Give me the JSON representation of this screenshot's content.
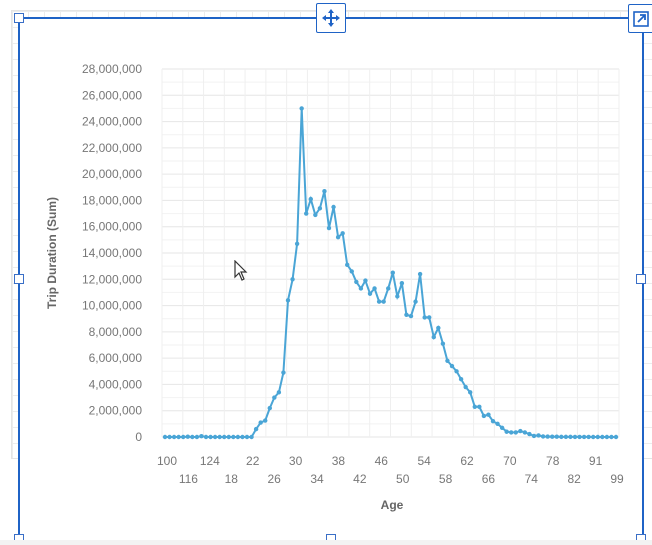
{
  "chart_data": {
    "type": "line",
    "xlabel": "Age",
    "ylabel": "Trip Duration (Sum)",
    "x_tick_labels_row1": [
      "100",
      "124",
      "22",
      "30",
      "38",
      "46",
      "54",
      "62",
      "70",
      "78",
      "91"
    ],
    "x_tick_labels_row2": [
      "116",
      "18",
      "26",
      "34",
      "42",
      "50",
      "58",
      "66",
      "74",
      "82",
      "99"
    ],
    "ylim": [
      0,
      28000000
    ],
    "y_ticks": [
      "0",
      "2,000,000",
      "4,000,000",
      "6,000,000",
      "8,000,000",
      "10,000,000",
      "12,000,000",
      "14,000,000",
      "16,000,000",
      "18,000,000",
      "20,000,000",
      "22,000,000",
      "24,000,000",
      "26,000,000",
      "28,000,000"
    ],
    "grid": true,
    "series_color": "#4aa5d6",
    "categories": [
      "100",
      "101",
      "102",
      "103",
      "104",
      "105",
      "106",
      "107",
      "108",
      "109",
      "110",
      "112",
      "113",
      "116",
      "117",
      "118",
      "119",
      "120",
      "121",
      "124",
      "16",
      "17",
      "18",
      "19",
      "20",
      "21",
      "22",
      "23",
      "24",
      "25",
      "26",
      "27",
      "28",
      "29",
      "30",
      "31",
      "32",
      "33",
      "34",
      "35",
      "36",
      "37",
      "38",
      "39",
      "40",
      "41",
      "42",
      "43",
      "44",
      "45",
      "46",
      "47",
      "48",
      "49",
      "50",
      "51",
      "52",
      "53",
      "54",
      "55",
      "56",
      "57",
      "58",
      "59",
      "60",
      "61",
      "62",
      "63",
      "64",
      "65",
      "66",
      "67",
      "68",
      "69",
      "70",
      "71",
      "72",
      "73",
      "74",
      "75",
      "76",
      "77",
      "78",
      "79",
      "80",
      "81",
      "82",
      "83",
      "84",
      "85",
      "86",
      "87",
      "88",
      "89",
      "91",
      "92",
      "93",
      "95",
      "96",
      "99"
    ],
    "values": [
      0,
      0,
      0,
      0,
      0,
      20000,
      0,
      0,
      60000,
      0,
      0,
      0,
      0,
      0,
      0,
      0,
      0,
      0,
      0,
      0,
      600000,
      1100000,
      1250000,
      2200000,
      3000000,
      3400000,
      4900000,
      10400000,
      12000000,
      14700000,
      25000000,
      17000000,
      18100000,
      16900000,
      17400000,
      18700000,
      15900000,
      17500000,
      15200000,
      15500000,
      13100000,
      12600000,
      11800000,
      11300000,
      11900000,
      10900000,
      11300000,
      10300000,
      10300000,
      11300000,
      12500000,
      10700000,
      11700000,
      9300000,
      9200000,
      10300000,
      12400000,
      9100000,
      9100000,
      7600000,
      8300000,
      7100000,
      5800000,
      5400000,
      5000000,
      4400000,
      3800000,
      3400000,
      2300000,
      2300000,
      1600000,
      1700000,
      1200000,
      1000000,
      700000,
      400000,
      350000,
      350000,
      450000,
      350000,
      220000,
      80000,
      120000,
      40000,
      30000,
      20000,
      20000,
      10000,
      10000,
      10000,
      5000,
      5000,
      5000,
      5000,
      0,
      0,
      0,
      0,
      0,
      0
    ]
  },
  "icons": {
    "move": "move-arrows-icon",
    "popout": "open-in-new-icon",
    "cursor": "mouse-pointer-icon"
  }
}
